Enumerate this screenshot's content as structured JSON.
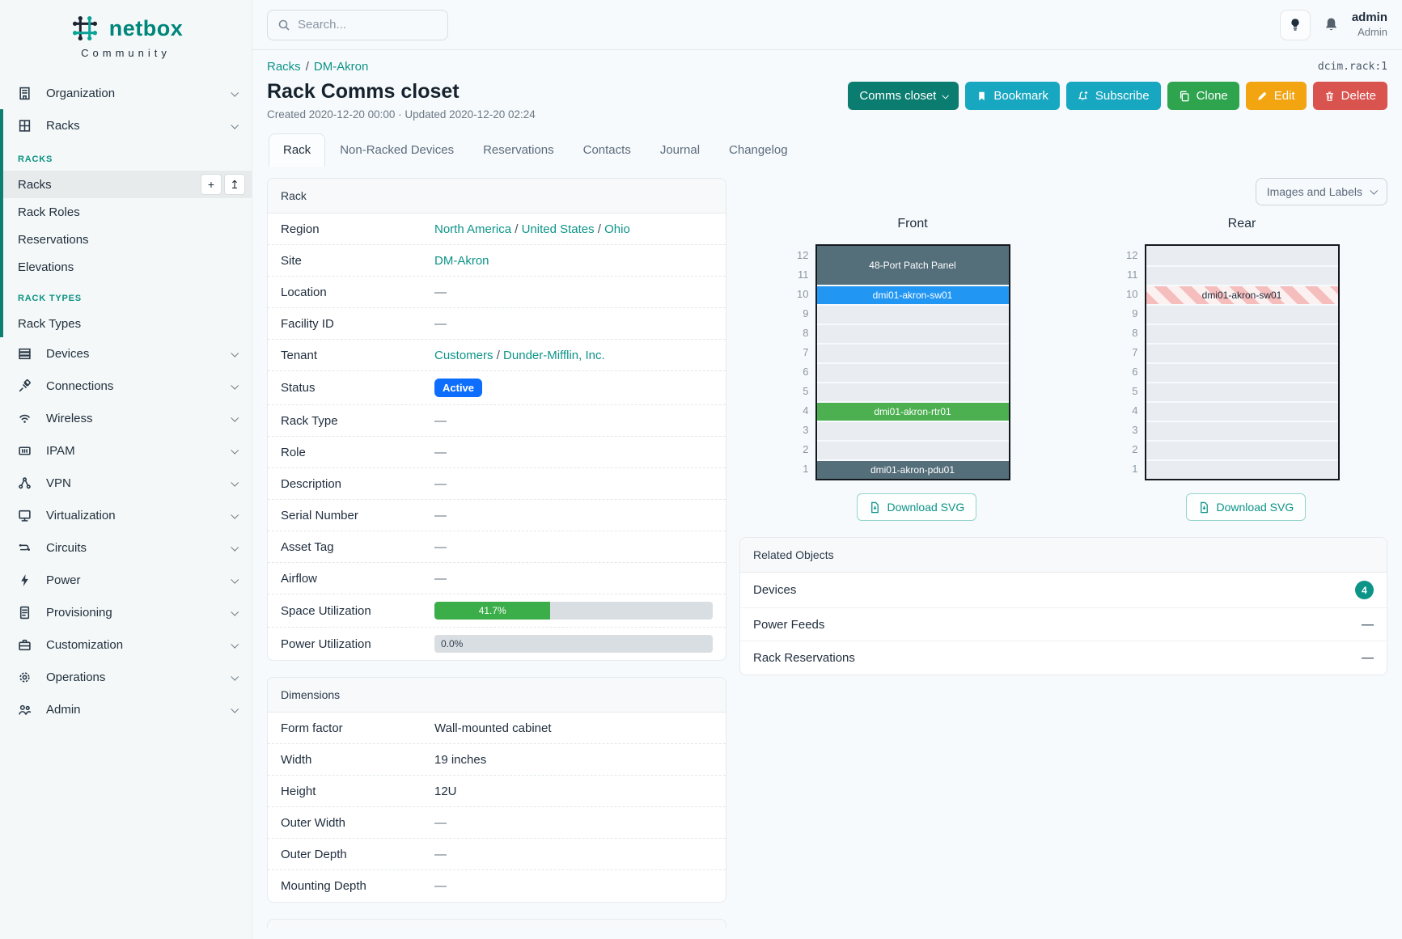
{
  "brand": {
    "name": "netbox",
    "tagline": "Community"
  },
  "topbar": {
    "search_placeholder": "Search...",
    "user_name": "admin",
    "user_role": "Admin",
    "icons": [
      "lightbulb-icon",
      "bell-icon"
    ]
  },
  "sidebar": {
    "items": [
      {
        "label": "Organization",
        "icon": "organization-icon"
      },
      {
        "label": "Racks",
        "icon": "racks-icon",
        "open": true,
        "children": [
          {
            "header": "RACKS"
          },
          {
            "label": "Racks",
            "active": true,
            "actions": [
              "plus-icon",
              "import-icon"
            ]
          },
          {
            "label": "Rack Roles"
          },
          {
            "label": "Reservations"
          },
          {
            "label": "Elevations"
          },
          {
            "header": "RACK TYPES"
          },
          {
            "label": "Rack Types"
          }
        ]
      },
      {
        "label": "Devices",
        "icon": "devices-icon"
      },
      {
        "label": "Connections",
        "icon": "connections-icon"
      },
      {
        "label": "Wireless",
        "icon": "wireless-icon"
      },
      {
        "label": "IPAM",
        "icon": "ipam-icon"
      },
      {
        "label": "VPN",
        "icon": "vpn-icon"
      },
      {
        "label": "Virtualization",
        "icon": "virtualization-icon"
      },
      {
        "label": "Circuits",
        "icon": "circuits-icon"
      },
      {
        "label": "Power",
        "icon": "power-icon"
      },
      {
        "label": "Provisioning",
        "icon": "provisioning-icon"
      },
      {
        "label": "Customization",
        "icon": "customization-icon"
      },
      {
        "label": "Operations",
        "icon": "operations-icon"
      },
      {
        "label": "Admin",
        "icon": "admin-icon"
      }
    ]
  },
  "page": {
    "breadcrumb": [
      {
        "label": "Racks"
      },
      {
        "label": "DM-Akron"
      }
    ],
    "object_id": "dcim.rack:1",
    "title": "Rack Comms closet",
    "meta": "Created 2020-12-20 00:00 · Updated 2020-12-20 02:24",
    "actions": [
      {
        "label": "Comms closet",
        "icon": "chevron-down-icon",
        "color": "#0b7d70"
      },
      {
        "label": "Bookmark",
        "icon": "bookmark-icon",
        "color": "#18a7c0"
      },
      {
        "label": "Subscribe",
        "icon": "bell-plus-icon",
        "color": "#18a7c0"
      },
      {
        "label": "Clone",
        "icon": "copy-icon",
        "color": "#2ea44f"
      },
      {
        "label": "Edit",
        "icon": "pencil-icon",
        "color": "#f2a411"
      },
      {
        "label": "Delete",
        "icon": "trash-icon",
        "color": "#d9534f"
      }
    ],
    "tabs": [
      {
        "label": "Rack",
        "active": true
      },
      {
        "label": "Non-Racked Devices"
      },
      {
        "label": "Reservations"
      },
      {
        "label": "Contacts"
      },
      {
        "label": "Journal"
      },
      {
        "label": "Changelog"
      }
    ]
  },
  "rack_panel": {
    "title": "Rack",
    "rows": [
      {
        "label": "Region",
        "type": "links",
        "links": [
          "North America",
          "United States",
          "Ohio"
        ]
      },
      {
        "label": "Site",
        "type": "links",
        "links": [
          "DM-Akron"
        ]
      },
      {
        "label": "Location",
        "type": "text",
        "value": "—"
      },
      {
        "label": "Facility ID",
        "type": "text",
        "value": "—"
      },
      {
        "label": "Tenant",
        "type": "links",
        "links": [
          "Customers",
          "Dunder-Mifflin, Inc."
        ]
      },
      {
        "label": "Status",
        "type": "badge",
        "value": "Active",
        "color": "#0d6efd"
      },
      {
        "label": "Rack Type",
        "type": "text",
        "value": "—"
      },
      {
        "label": "Role",
        "type": "text",
        "value": "—"
      },
      {
        "label": "Description",
        "type": "text",
        "value": "—"
      },
      {
        "label": "Serial Number",
        "type": "text",
        "value": "—"
      },
      {
        "label": "Asset Tag",
        "type": "text",
        "value": "—"
      },
      {
        "label": "Airflow",
        "type": "text",
        "value": "—"
      },
      {
        "label": "Space Utilization",
        "type": "progress",
        "percent": 41.7,
        "text": "41.7%",
        "fill": "#3bae4a"
      },
      {
        "label": "Power Utilization",
        "type": "progress",
        "percent": 0,
        "text": "0.0%",
        "fill": "#3bae4a"
      }
    ]
  },
  "dimensions_panel": {
    "title": "Dimensions",
    "rows": [
      {
        "label": "Form factor",
        "type": "text",
        "value": "Wall-mounted cabinet"
      },
      {
        "label": "Width",
        "type": "text",
        "value": "19 inches"
      },
      {
        "label": "Height",
        "type": "text",
        "value": "12U"
      },
      {
        "label": "Outer Width",
        "type": "text",
        "value": "—"
      },
      {
        "label": "Outer Depth",
        "type": "text",
        "value": "—"
      },
      {
        "label": "Mounting Depth",
        "type": "text",
        "value": "—"
      }
    ]
  },
  "elevation": {
    "toolbar_label": "Images and Labels",
    "views": [
      {
        "title": "Front",
        "download_label": "Download SVG",
        "units": [
          12,
          11,
          10,
          9,
          8,
          7,
          6,
          5,
          4,
          3,
          2,
          1
        ],
        "slots": [
          {
            "u": "12-11",
            "h": 2,
            "label": "48-Port Patch Panel",
            "style": "dark"
          },
          {
            "u": "10",
            "h": 1,
            "label": "dmi01-akron-sw01",
            "style": "blue"
          },
          {
            "u": "9",
            "h": 1
          },
          {
            "u": "8",
            "h": 1
          },
          {
            "u": "7",
            "h": 1
          },
          {
            "u": "6",
            "h": 1
          },
          {
            "u": "5",
            "h": 1
          },
          {
            "u": "4",
            "h": 1,
            "label": "dmi01-akron-rtr01",
            "style": "green"
          },
          {
            "u": "3",
            "h": 1
          },
          {
            "u": "2",
            "h": 1
          },
          {
            "u": "1",
            "h": 1,
            "label": "dmi01-akron-pdu01",
            "style": "dark"
          }
        ]
      },
      {
        "title": "Rear",
        "download_label": "Download SVG",
        "units": [
          12,
          11,
          10,
          9,
          8,
          7,
          6,
          5,
          4,
          3,
          2,
          1
        ],
        "slots": [
          {
            "u": "12",
            "h": 1
          },
          {
            "u": "11",
            "h": 1
          },
          {
            "u": "10",
            "h": 1,
            "label": "dmi01-akron-sw01",
            "style": "striped"
          },
          {
            "u": "9",
            "h": 1
          },
          {
            "u": "8",
            "h": 1
          },
          {
            "u": "7",
            "h": 1
          },
          {
            "u": "6",
            "h": 1
          },
          {
            "u": "5",
            "h": 1
          },
          {
            "u": "4",
            "h": 1
          },
          {
            "u": "3",
            "h": 1
          },
          {
            "u": "2",
            "h": 1
          },
          {
            "u": "1",
            "h": 1
          }
        ]
      }
    ]
  },
  "related_objects": {
    "title": "Related Objects",
    "rows": [
      {
        "label": "Devices",
        "count": "4"
      },
      {
        "label": "Power Feeds",
        "value": "—"
      },
      {
        "label": "Rack Reservations",
        "value": "—"
      }
    ]
  },
  "colors": {
    "accent_teal": "#0d9488",
    "brand_teal": "#00857b",
    "status_active_blue": "#0d6efd",
    "progress_green": "#3bae4a",
    "rack_slot_dark": "#546e7a",
    "rack_slot_blue": "#2196f3",
    "rack_slot_green": "#4caf50",
    "rack_stripe_pink": "#f6bdbd"
  }
}
